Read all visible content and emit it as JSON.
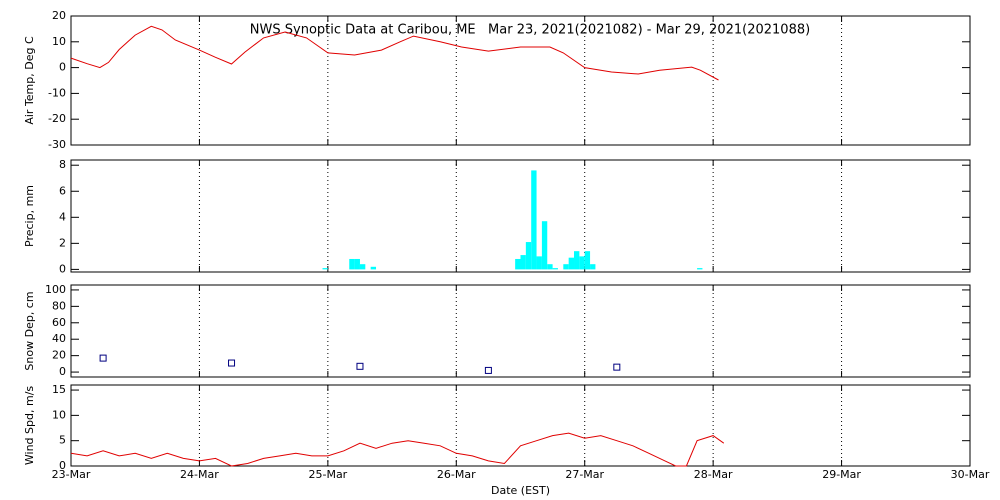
{
  "chart_data": [
    {
      "type": "line",
      "title": "NWS Synoptic Data at Caribou, ME   Mar 23, 2021(2021082) - Mar 29, 2021(2021088)",
      "ylabel": "Air Temp, Deg C",
      "color": "#e00000",
      "grid": "x",
      "xlim": [
        0,
        168
      ],
      "ylim": [
        -30,
        20
      ],
      "yticks": [
        -30,
        -20,
        -10,
        0,
        10,
        20
      ],
      "x": [
        0,
        3,
        5.4,
        7,
        9,
        12,
        15,
        17,
        19.5,
        24,
        27,
        30,
        32.5,
        36,
        40,
        44,
        48,
        53,
        58,
        61.5,
        64,
        69,
        73,
        78,
        84,
        89.5,
        92,
        96,
        101,
        106,
        110,
        116,
        117.6,
        121
      ],
      "values": [
        3.7,
        1.5,
        0,
        2,
        7,
        12.6,
        16,
        14.6,
        10.7,
        6.8,
        4,
        1.4,
        6,
        11.5,
        13.8,
        11.5,
        5.7,
        4.9,
        6.8,
        10,
        12.2,
        10,
        8,
        6.4,
        8,
        8,
        5.7,
        0,
        -1.7,
        -2.5,
        -1,
        0.2,
        -1,
        -4.8
      ]
    },
    {
      "type": "bar",
      "ylabel": "Precip, mm",
      "color": "#00ffff",
      "grid": "x",
      "xlim": [
        0,
        168
      ],
      "ylim": [
        -0.2,
        8.4
      ],
      "yticks": [
        0,
        2,
        4,
        6,
        8
      ],
      "x": [
        47,
        52,
        53,
        54,
        56,
        83,
        84,
        85,
        86,
        87,
        88,
        89,
        90,
        92,
        93,
        94,
        95,
        96,
        97,
        117
      ],
      "values": [
        0.1,
        0.8,
        0.8,
        0.4,
        0.2,
        0.8,
        1.1,
        2.1,
        7.6,
        1,
        3.7,
        0.4,
        0.1,
        0.4,
        0.9,
        1.4,
        1,
        1.4,
        0.4,
        0.1
      ]
    },
    {
      "type": "scatter",
      "ylabel": "Snow Dep, cm",
      "color": "#000080",
      "grid": "x",
      "xlim": [
        0,
        168
      ],
      "ylim": [
        -6,
        106
      ],
      "yticks": [
        0,
        20,
        40,
        60,
        80,
        100
      ],
      "x": [
        6,
        30,
        54,
        78,
        102
      ],
      "values": [
        17,
        11,
        7,
        2,
        6
      ]
    },
    {
      "type": "line",
      "ylabel": "Wind Spd, m/s",
      "xlabel": "Date (EST)",
      "color": "#e00000",
      "grid": "x",
      "xlim": [
        0,
        168
      ],
      "ylim": [
        0,
        16
      ],
      "yticks": [
        0,
        5,
        10,
        15
      ],
      "xticks": [
        {
          "value": 0,
          "label": "23-Mar"
        },
        {
          "value": 24,
          "label": "24-Mar"
        },
        {
          "value": 48,
          "label": "25-Mar"
        },
        {
          "value": 72,
          "label": "26-Mar"
        },
        {
          "value": 96,
          "label": "27-Mar"
        },
        {
          "value": 120,
          "label": "28-Mar"
        },
        {
          "value": 144,
          "label": "29-Mar"
        },
        {
          "value": 168,
          "label": "30-Mar"
        }
      ],
      "x": [
        0,
        3,
        6,
        9,
        12,
        15,
        18,
        21,
        24,
        27,
        30,
        33,
        36,
        39,
        42,
        45,
        48,
        51,
        54,
        57,
        60,
        63,
        66,
        69,
        72,
        75,
        78,
        81,
        84,
        87,
        90,
        93,
        96,
        99,
        102,
        105,
        108,
        111,
        113,
        115,
        117,
        120,
        122
      ],
      "values": [
        2.5,
        2,
        3,
        2,
        2.5,
        1.5,
        2.5,
        1.5,
        1,
        1.5,
        0,
        0.5,
        1.5,
        2,
        2.5,
        2,
        2,
        3,
        4.5,
        3.5,
        4.5,
        5,
        4.5,
        4,
        2.5,
        2,
        1,
        0.5,
        4,
        5,
        6,
        6.5,
        5.5,
        6,
        5,
        4,
        2.5,
        1,
        0,
        0,
        5,
        6,
        4.5
      ]
    }
  ]
}
